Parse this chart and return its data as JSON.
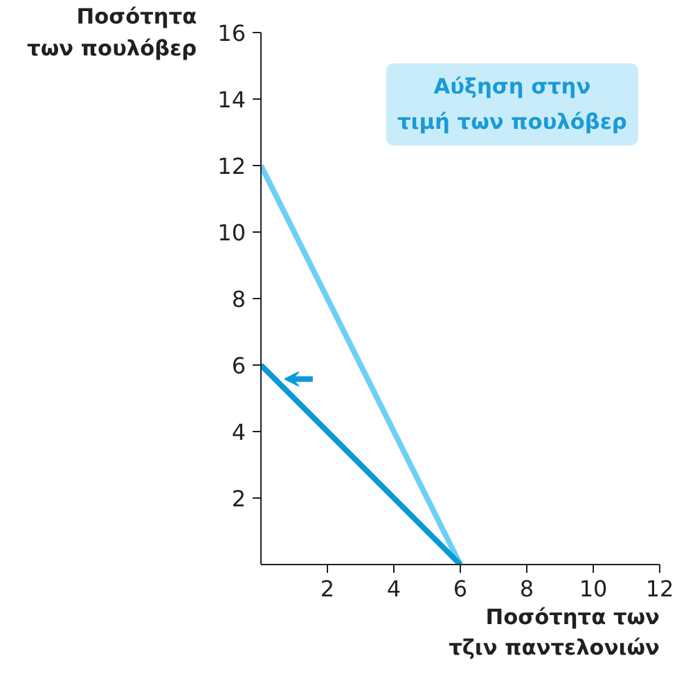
{
  "chart_data": {
    "type": "line",
    "xlabel": "Ποσότητα των\nτζιν παντελονιών",
    "ylabel": "Ποσότητα\nτων πουλόβερ",
    "annotations": [
      "Αύξηση στην\nτιμή των πουλόβερ"
    ],
    "x": [
      0,
      6
    ],
    "series": [
      {
        "color": "#6dcff6",
        "values": [
          12,
          0
        ]
      },
      {
        "color": "#0a9ad9",
        "values": [
          6,
          0
        ]
      }
    ],
    "xlim": [
      0,
      12
    ],
    "ylim": [
      0,
      16
    ],
    "xticks": [
      2,
      4,
      6,
      8,
      10,
      12
    ],
    "yticks": [
      2,
      4,
      6,
      8,
      10,
      12,
      14,
      16
    ],
    "grid": false,
    "marker": "none",
    "line_style": "solid"
  }
}
